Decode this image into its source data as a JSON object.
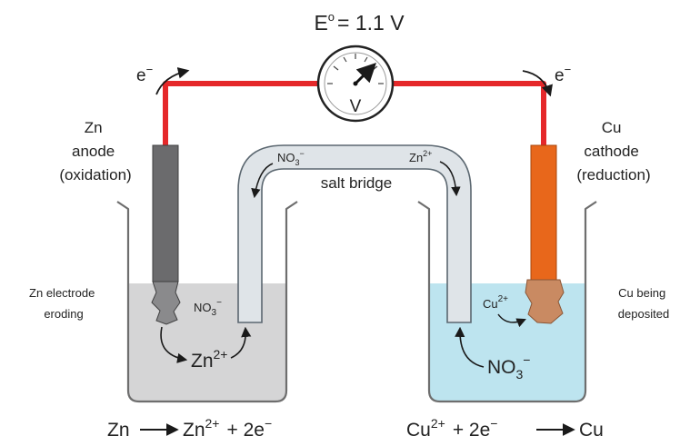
{
  "voltage": {
    "label": "E",
    "superscript": "o",
    "value": "= 1.1 V",
    "meter_symbol": "V"
  },
  "electron": {
    "base": "e",
    "charge": "−"
  },
  "anode": {
    "line1": "Zn",
    "line2": "anode",
    "line3": "(oxidation)"
  },
  "cathode": {
    "line1": "Cu",
    "line2": "cathode",
    "line3": "(reduction)"
  },
  "salt_bridge": {
    "label": "salt bridge"
  },
  "left_cell": {
    "note_line1": "Zn electrode",
    "note_line2": "eroding",
    "nitrate": {
      "base": "NO",
      "sub": "3",
      "charge": "−"
    },
    "zinc_ion": {
      "base": "Zn",
      "charge": "2+"
    }
  },
  "right_cell": {
    "note_line1": "Cu being",
    "note_line2": "deposited",
    "copper_ion": {
      "base": "Cu",
      "charge": "2+"
    },
    "nitrate": {
      "base": "NO",
      "sub": "3",
      "charge": "−"
    }
  },
  "bridge_ions": {
    "nitrate": {
      "base": "NO",
      "sub": "3",
      "charge": "−"
    },
    "zinc": {
      "base": "Zn",
      "charge": "2+"
    }
  },
  "equations": {
    "anode": {
      "reactant": "Zn",
      "product": "Zn",
      "product_charge": "2+",
      "rest": "+ 2e",
      "rest_charge": "−"
    },
    "cathode": {
      "reactant": "Cu",
      "reactant_charge": "2+",
      "mid": "+ 2e",
      "mid_charge": "−",
      "product": "Cu"
    }
  },
  "colors": {
    "wire": "#e5282a",
    "zinc_electrode": "#6b6b6d",
    "copper_electrode": "#e8671b",
    "copper_deposit": "#c98a62",
    "left_solution": "#d5d5d6",
    "right_solution": "#bde4ef",
    "salt_bridge": "#dfe4e8"
  }
}
